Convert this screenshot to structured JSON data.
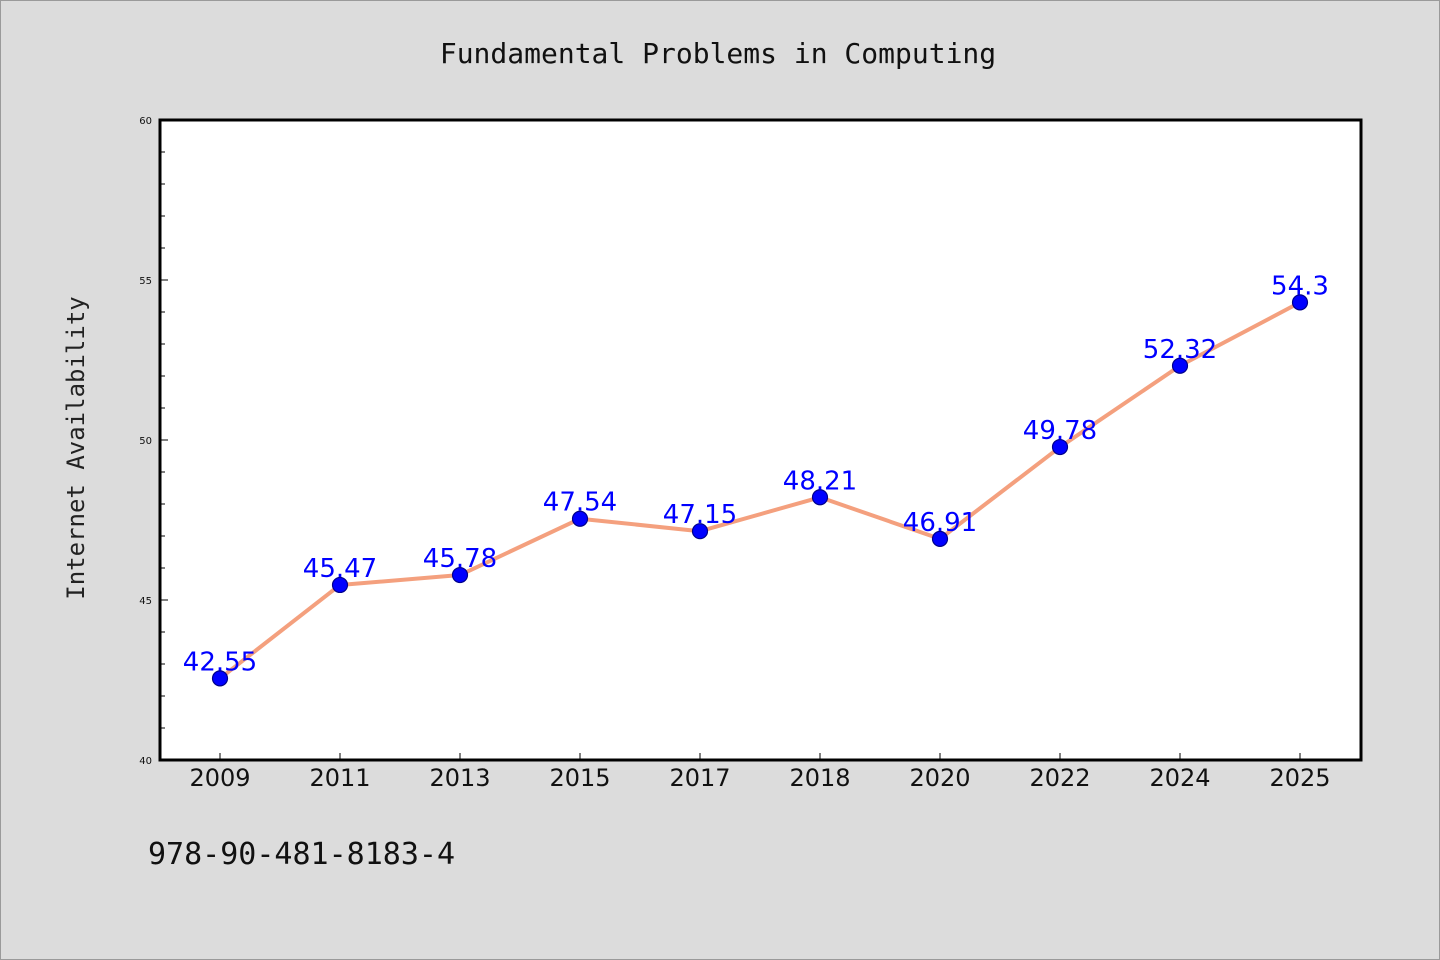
{
  "chart_data": {
    "type": "line",
    "title": "Fundamental Problems in Computing",
    "xlabel": "",
    "ylabel": "Internet Availability",
    "categories": [
      "2009",
      "2011",
      "2013",
      "2015",
      "2017",
      "2018",
      "2020",
      "2022",
      "2024",
      "2025"
    ],
    "series": [
      {
        "values": [
          42.55,
          45.47,
          45.78,
          47.54,
          47.15,
          48.21,
          46.91,
          49.78,
          52.32,
          54.3
        ],
        "labels": [
          "42.55",
          "45.47",
          "45.78",
          "47.54",
          "47.15",
          "48.21",
          "46.91",
          "49.78",
          "52.32",
          "54.3"
        ]
      }
    ],
    "ylim": [
      40,
      60
    ],
    "yticks": [
      40,
      45,
      50,
      55,
      60
    ],
    "grid": false,
    "colors": {
      "line": "#f4a07e",
      "marker": "#0000ff",
      "marker_edge": "#00008b",
      "data_label": "#0000ff",
      "plot_bg": "#ffffff",
      "figure_bg": "#dcdcdc"
    }
  },
  "annotation": "978-90-481-8183-4"
}
